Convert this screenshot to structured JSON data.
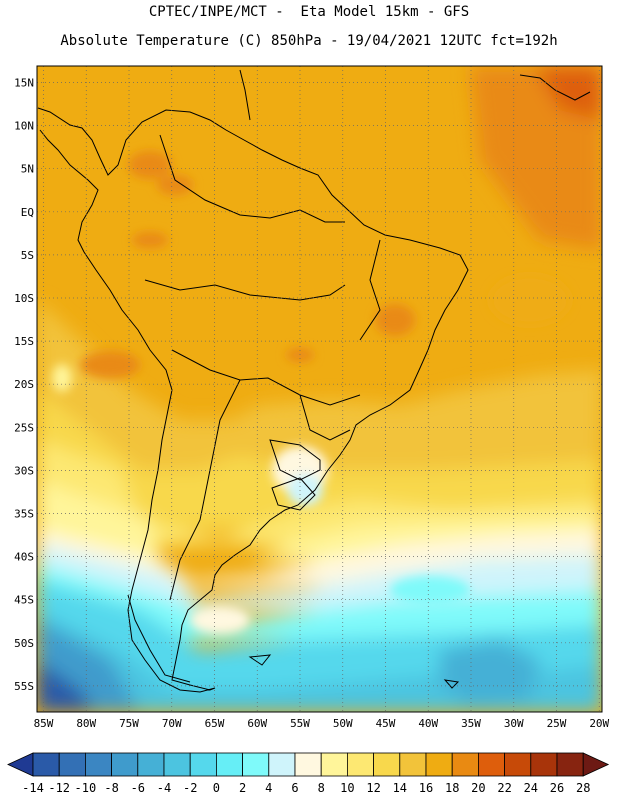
{
  "header": {
    "line1": "CPTEC/INPE/MCT -  Eta Model 15km - GFS",
    "line2": "Absolute Temperature (C) 850hPa - 19/04/2021 12UTC fct=192h"
  },
  "map": {
    "lat_labels": [
      "15N",
      "10N",
      "5N",
      "EQ",
      "5S",
      "10S",
      "15S",
      "20S",
      "25S",
      "30S",
      "35S",
      "40S",
      "45S",
      "50S",
      "55S"
    ],
    "lon_labels": [
      "85W",
      "80W",
      "75W",
      "70W",
      "65W",
      "60W",
      "55W",
      "50W",
      "45W",
      "40W",
      "35W",
      "30W",
      "25W",
      "20W"
    ]
  },
  "colorbar": {
    "labels": [
      "-14",
      "-12",
      "-10",
      "-8",
      "-6",
      "-4",
      "-2",
      "0",
      "2",
      "4",
      "6",
      "8",
      "10",
      "12",
      "14",
      "16",
      "18",
      "20",
      "22",
      "24",
      "26",
      "28"
    ],
    "colors": [
      "#1f3a93",
      "#2a5aa8",
      "#3370b5",
      "#3b86c2",
      "#3f9bcc",
      "#45b0d6",
      "#4cc4e0",
      "#55d8ec",
      "#66eef6",
      "#7ffafa",
      "#cff4fb",
      "#fff8e0",
      "#fff59a",
      "#fde872",
      "#f8d84c",
      "#f2c33a",
      "#efac12",
      "#e98a12",
      "#de5e0c",
      "#c74a08",
      "#a8340a",
      "#872410",
      "#6d1a14"
    ]
  }
}
